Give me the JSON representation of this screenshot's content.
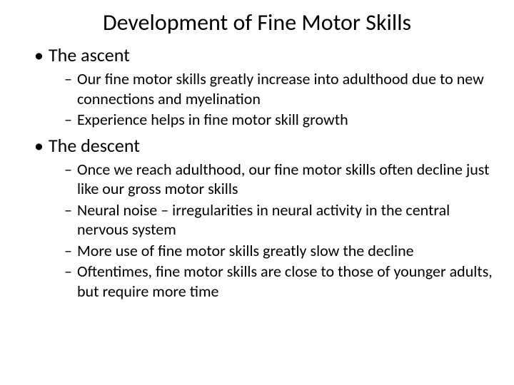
{
  "title": "Development of Fine Motor Skills",
  "section1": {
    "heading": "The ascent",
    "items": [
      "Our fine motor skills greatly increase into adulthood due to new connections and myelination",
      "Experience helps in fine motor skill growth"
    ]
  },
  "section2": {
    "heading": "The descent",
    "items": [
      "Once we reach adulthood, our fine motor skills often decline just like our gross motor skills",
      "Neural noise – irregularities in neural activity in the central nervous system",
      "More use of fine motor skills greatly slow the decline",
      "Oftentimes, fine motor skills are close to those of younger adults, but require more time"
    ]
  }
}
